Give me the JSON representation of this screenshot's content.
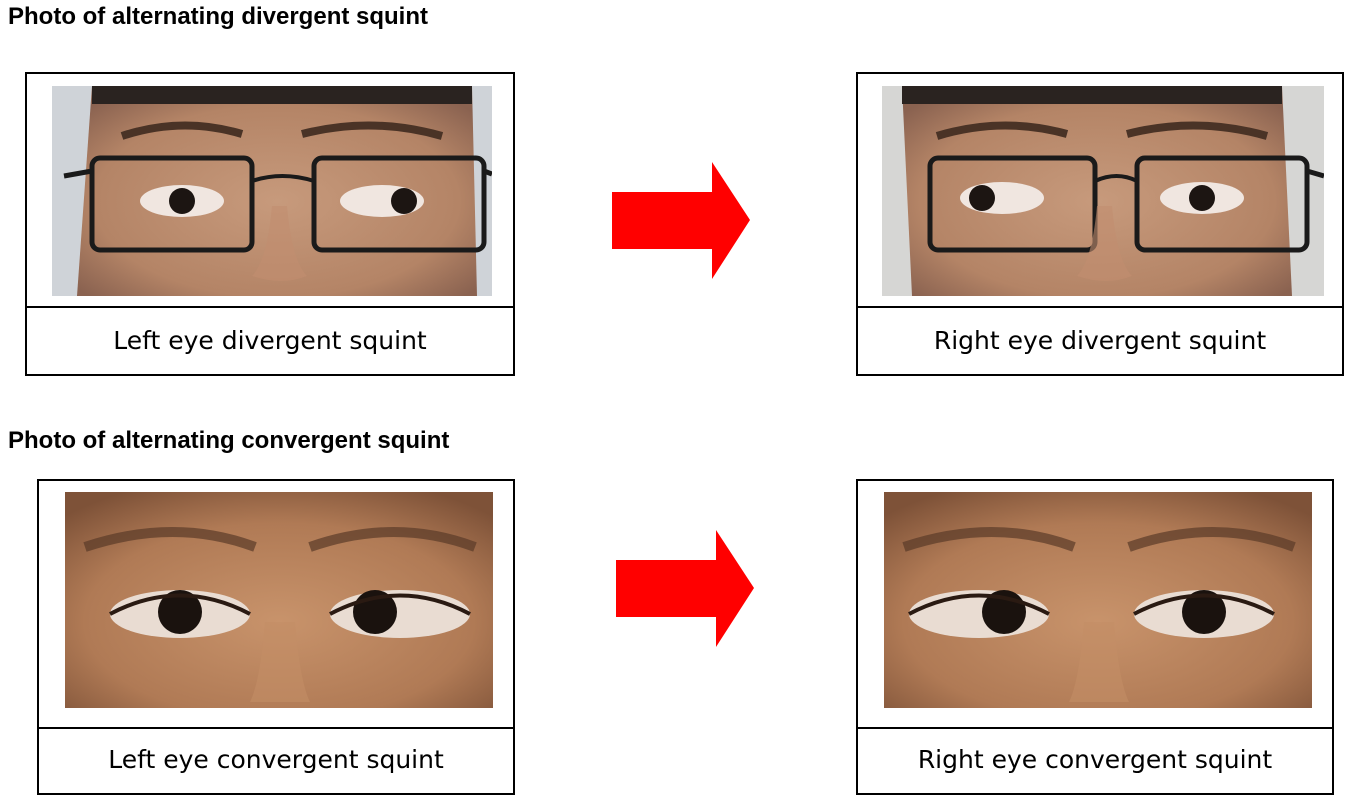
{
  "sections": [
    {
      "heading": "Photo of alternating divergent squint",
      "left_caption": "Left eye divergent squint",
      "right_caption": "Right eye divergent squint"
    },
    {
      "heading": "Photo of alternating convergent squint",
      "left_caption": "Left eye convergent squint",
      "right_caption": "Right eye convergent squint"
    }
  ],
  "colors": {
    "arrow": "#ff0000",
    "border": "#000000"
  }
}
